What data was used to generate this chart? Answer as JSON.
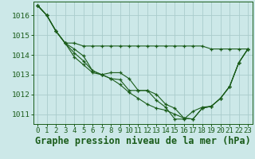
{
  "title": "Graphe pression niveau de la mer (hPa)",
  "bg_color": "#cce8e8",
  "line_color": "#1a5c1a",
  "grid_color": "#aacccc",
  "xlim": [
    -0.5,
    23.5
  ],
  "ylim": [
    1010.5,
    1016.7
  ],
  "yticks": [
    1011,
    1012,
    1013,
    1014,
    1015,
    1016
  ],
  "xticks": [
    0,
    1,
    2,
    3,
    4,
    5,
    6,
    7,
    8,
    9,
    10,
    11,
    12,
    13,
    14,
    15,
    16,
    17,
    18,
    19,
    20,
    21,
    22,
    23
  ],
  "series": [
    [
      1016.5,
      1016.0,
      1015.2,
      1014.6,
      1014.6,
      1014.45,
      1014.45,
      1014.45,
      1014.45,
      1014.45,
      1014.45,
      1014.45,
      1014.45,
      1014.45,
      1014.45,
      1014.45,
      1014.45,
      1014.45,
      1014.45,
      1014.3,
      1014.3,
      1014.3,
      1014.3,
      1014.3
    ],
    [
      1016.5,
      1016.0,
      1015.2,
      1014.6,
      1013.9,
      1013.5,
      1013.1,
      1013.0,
      1013.1,
      1013.1,
      1012.8,
      1012.2,
      1012.2,
      1012.0,
      1011.5,
      1011.3,
      1010.8,
      1010.75,
      1011.3,
      1011.4,
      1011.8,
      1012.4,
      1013.6,
      1014.3
    ],
    [
      1016.5,
      1016.0,
      1015.2,
      1014.6,
      1014.3,
      1013.95,
      1013.2,
      1013.0,
      1012.8,
      1012.75,
      1012.2,
      1012.2,
      1012.2,
      1011.7,
      1011.35,
      1010.75,
      1010.75,
      1011.15,
      1011.35,
      1011.4,
      1011.8,
      1012.4,
      1013.6,
      1014.3
    ],
    [
      1016.5,
      1016.0,
      1015.2,
      1014.6,
      1014.1,
      1013.7,
      1013.2,
      1013.0,
      1012.8,
      1012.5,
      1012.1,
      1011.8,
      1011.5,
      1011.3,
      1011.2,
      1011.0,
      1010.8,
      1010.75,
      1011.3,
      1011.4,
      1011.8,
      1012.4,
      1013.6,
      1014.3
    ]
  ],
  "title_fontsize": 8.5,
  "tick_fontsize": 6.5
}
